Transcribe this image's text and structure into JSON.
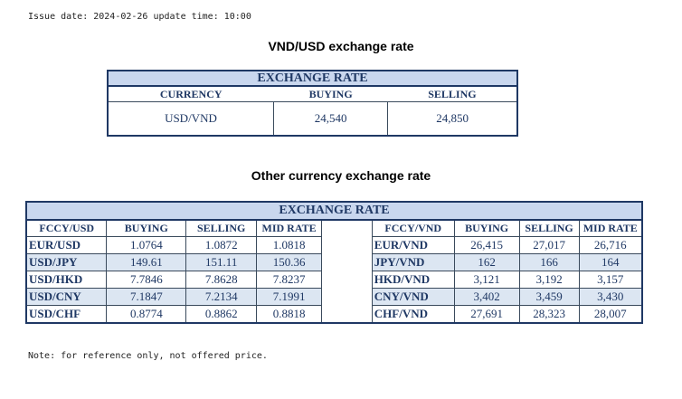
{
  "header": {
    "issue_line": "Issue date: 2024-02-26 update time: 10:00"
  },
  "section1": {
    "title": "VND/USD exchange rate",
    "table_title": "EXCHANGE RATE",
    "columns": [
      "CURRENCY",
      "BUYING",
      "SELLING"
    ],
    "row": {
      "currency": "USD/VND",
      "buying": "24,540",
      "selling": "24,850"
    }
  },
  "section2": {
    "title": "Other currency exchange rate",
    "table_title": "EXCHANGE  RATE",
    "left_columns": [
      "FCCY/USD",
      "BUYING",
      "SELLING",
      "MID RATE"
    ],
    "right_columns": [
      "FCCY/VND",
      "BUYING",
      "SELLING",
      "MID RATE"
    ],
    "rows": [
      {
        "l_pair": "EUR/USD",
        "l_buy": "1.0764",
        "l_sell": "1.0872",
        "l_mid": "1.0818",
        "r_pair": "EUR/VND",
        "r_buy": "26,415",
        "r_sell": "27,017",
        "r_mid": "26,716"
      },
      {
        "l_pair": "USD/JPY",
        "l_buy": "149.61",
        "l_sell": "151.11",
        "l_mid": "150.36",
        "r_pair": "JPY/VND",
        "r_buy": "162",
        "r_sell": "166",
        "r_mid": "164"
      },
      {
        "l_pair": "USD/HKD",
        "l_buy": "7.7846",
        "l_sell": "7.8628",
        "l_mid": "7.8237",
        "r_pair": "HKD/VND",
        "r_buy": "3,121",
        "r_sell": "3,192",
        "r_mid": "3,157"
      },
      {
        "l_pair": "USD/CNY",
        "l_buy": "7.1847",
        "l_sell": "7.2134",
        "l_mid": "7.1991",
        "r_pair": "CNY/VND",
        "r_buy": "3,402",
        "r_sell": "3,459",
        "r_mid": "3,430"
      },
      {
        "l_pair": "USD/CHF",
        "l_buy": "0.8774",
        "l_sell": "0.8862",
        "l_mid": "0.8818",
        "r_pair": "CHF/VND",
        "r_buy": "27,691",
        "r_sell": "28,323",
        "r_mid": "28,007"
      }
    ]
  },
  "footer": {
    "note": "Note: for reference only, not offered price."
  },
  "colors": {
    "header_fill": "#c9d7ee",
    "row_alt_fill": "#dce6f2",
    "text_blue": "#1f3864"
  }
}
